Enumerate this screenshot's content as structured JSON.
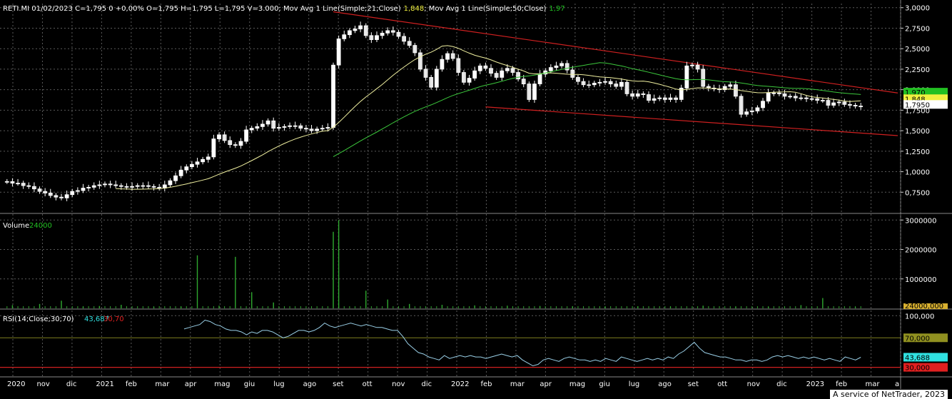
{
  "header": {
    "ticker_line": "RETI.MI 01/02/2023 C=1,795 0 +0,00% O=1,795 H=1,795 L=1,795 V=3.000; Mov Avg 1 Line(Simple;21;Close)",
    "ma21_value": "1,848",
    "ma50_label": "; Mov Avg 1 Line(Simple;50;Close)",
    "ma50_value": "1,97"
  },
  "volume_header": {
    "label": "Volume",
    "value": "24000"
  },
  "rsi_header": {
    "label": "RSI(14;Close;30;70)",
    "value": "43,687",
    "levels": "30,70"
  },
  "footer": "A service of NetTrader, 2023",
  "colors": {
    "background": "#000000",
    "grid": "#5a5a5a",
    "price_axis_bg": "#000000",
    "ma21": "#f0f0a0",
    "ma50": "#3cc83c",
    "trend": "#d02020",
    "volume": "#2fa82f",
    "rsi": "#9ad0e8",
    "rsi70": "#808020",
    "rsi30": "#d02020",
    "label_ma50": "#22c022",
    "label_ma21": "#f0f040",
    "label_close": "#ffffff",
    "label_rsi": "#30e0e0",
    "label_rsi30": "#e02020",
    "label_rsi70": "#909020"
  },
  "chart_data": [
    {
      "type": "candlestick",
      "name": "price",
      "x_labels": [
        "2020",
        "nov",
        "dic",
        "2021",
        "feb",
        "mar",
        "apr",
        "mag",
        "giu",
        "lug",
        "ago",
        "set",
        "ott",
        "nov",
        "dic",
        "2022",
        "feb",
        "mar",
        "apr",
        "mag",
        "giu",
        "lug",
        "ago",
        "set",
        "ott",
        "nov",
        "dic",
        "2023",
        "feb",
        "mar",
        "a"
      ],
      "y_ticks": [
        "3,0000",
        "2,7500",
        "2,5000",
        "2,2500",
        "2,0000",
        "1,7500",
        "1,5000",
        "1,2500",
        "1,0000",
        "0,7500"
      ],
      "ylim": [
        0.5,
        3.05
      ],
      "price_labels": {
        "ma50": "1,970",
        "ma21": "1,848",
        "close": "1,7950"
      },
      "closes": [
        0.88,
        0.86,
        0.86,
        0.83,
        0.82,
        0.79,
        0.76,
        0.74,
        0.71,
        0.69,
        0.68,
        0.72,
        0.76,
        0.77,
        0.8,
        0.81,
        0.83,
        0.84,
        0.85,
        0.84,
        0.83,
        0.82,
        0.81,
        0.82,
        0.83,
        0.83,
        0.82,
        0.81,
        0.8,
        0.84,
        0.89,
        0.95,
        1.02,
        1.06,
        1.09,
        1.12,
        1.15,
        1.18,
        1.4,
        1.45,
        1.38,
        1.33,
        1.32,
        1.37,
        1.51,
        1.53,
        1.55,
        1.58,
        1.62,
        1.53,
        1.54,
        1.55,
        1.56,
        1.56,
        1.53,
        1.52,
        1.5,
        1.52,
        1.53,
        1.54,
        2.3,
        2.62,
        2.67,
        2.72,
        2.74,
        2.78,
        2.66,
        2.61,
        2.66,
        2.69,
        2.72,
        2.7,
        2.65,
        2.59,
        2.54,
        2.45,
        2.25,
        2.15,
        2.03,
        2.25,
        2.37,
        2.44,
        2.38,
        2.21,
        2.09,
        2.14,
        2.23,
        2.29,
        2.26,
        2.2,
        2.15,
        2.23,
        2.26,
        2.21,
        2.13,
        2.07,
        1.88,
        2.07,
        2.19,
        2.23,
        2.27,
        2.29,
        2.32,
        2.24,
        2.15,
        2.1,
        2.06,
        2.06,
        2.08,
        2.09,
        2.1,
        2.07,
        2.04,
        2.09,
        1.95,
        1.92,
        1.95,
        1.94,
        1.87,
        1.89,
        1.9,
        1.88,
        1.9,
        1.88,
        2.02,
        2.29,
        2.3,
        2.25,
        2.04,
        2.02,
        2.01,
        2.0,
        2.04,
        2.06,
        1.92,
        1.7,
        1.73,
        1.74,
        1.78,
        1.86,
        1.96,
        1.96,
        1.95,
        1.92,
        1.92,
        1.9,
        1.9,
        1.89,
        1.89,
        1.87,
        1.87,
        1.81,
        1.84,
        1.85,
        1.82,
        1.81,
        1.8,
        1.795
      ]
    },
    {
      "type": "bar",
      "name": "Volume",
      "y_ticks": [
        "3000000",
        "2000000",
        "1000000",
        "24000,000"
      ],
      "ylim": [
        0,
        3200000
      ],
      "spikes": [
        [
          1,
          110000
        ],
        [
          6,
          150000
        ],
        [
          10,
          260000
        ],
        [
          14,
          60000
        ],
        [
          17,
          80000
        ],
        [
          21,
          120000
        ],
        [
          27,
          40000
        ],
        [
          32,
          60000
        ],
        [
          35,
          1800000
        ],
        [
          39,
          90000
        ],
        [
          42,
          1750000
        ],
        [
          45,
          550000
        ],
        [
          49,
          200000
        ],
        [
          60,
          2600000
        ],
        [
          61,
          3000000
        ],
        [
          66,
          600000
        ],
        [
          70,
          300000
        ],
        [
          74,
          150000
        ],
        [
          80,
          120000
        ],
        [
          86,
          100000
        ],
        [
          92,
          90000
        ],
        [
          98,
          80000
        ],
        [
          104,
          70000
        ],
        [
          110,
          60000
        ],
        [
          116,
          70000
        ],
        [
          122,
          60000
        ],
        [
          128,
          90000
        ],
        [
          134,
          60000
        ],
        [
          140,
          50000
        ],
        [
          146,
          110000
        ],
        [
          150,
          350000
        ],
        [
          156,
          40000
        ]
      ]
    },
    {
      "type": "line",
      "name": "RSI(14;Close;30;70)",
      "y_ticks": [
        "100,000",
        "70,000",
        "43,688",
        "30,000"
      ],
      "ylim": [
        18,
        108
      ],
      "levels": [
        30,
        70
      ],
      "values": [
        82,
        84,
        86,
        88,
        94,
        92,
        88,
        86,
        82,
        80,
        80,
        78,
        74,
        78,
        76,
        80,
        80,
        78,
        74,
        70,
        72,
        76,
        80,
        80,
        78,
        80,
        84,
        90,
        86,
        84,
        86,
        88,
        90,
        88,
        86,
        88,
        86,
        84,
        84,
        82,
        80,
        80,
        72,
        62,
        56,
        50,
        48,
        44,
        42,
        40,
        46,
        42,
        44,
        46,
        44,
        46,
        44,
        44,
        42,
        44,
        46,
        48,
        46,
        44,
        46,
        40,
        36,
        32,
        34,
        40,
        42,
        40,
        38,
        42,
        44,
        42,
        40,
        40,
        38,
        40,
        38,
        42,
        40,
        38,
        44,
        42,
        40,
        38,
        40,
        42,
        40,
        42,
        40,
        44,
        42,
        48,
        52,
        58,
        64,
        56,
        50,
        48,
        46,
        44,
        44,
        42,
        40,
        40,
        38,
        40,
        40,
        38,
        40,
        44,
        46,
        44,
        46,
        44,
        42,
        44,
        42,
        44,
        42,
        40,
        42,
        40,
        38,
        44,
        42,
        40,
        43.687
      ]
    }
  ]
}
